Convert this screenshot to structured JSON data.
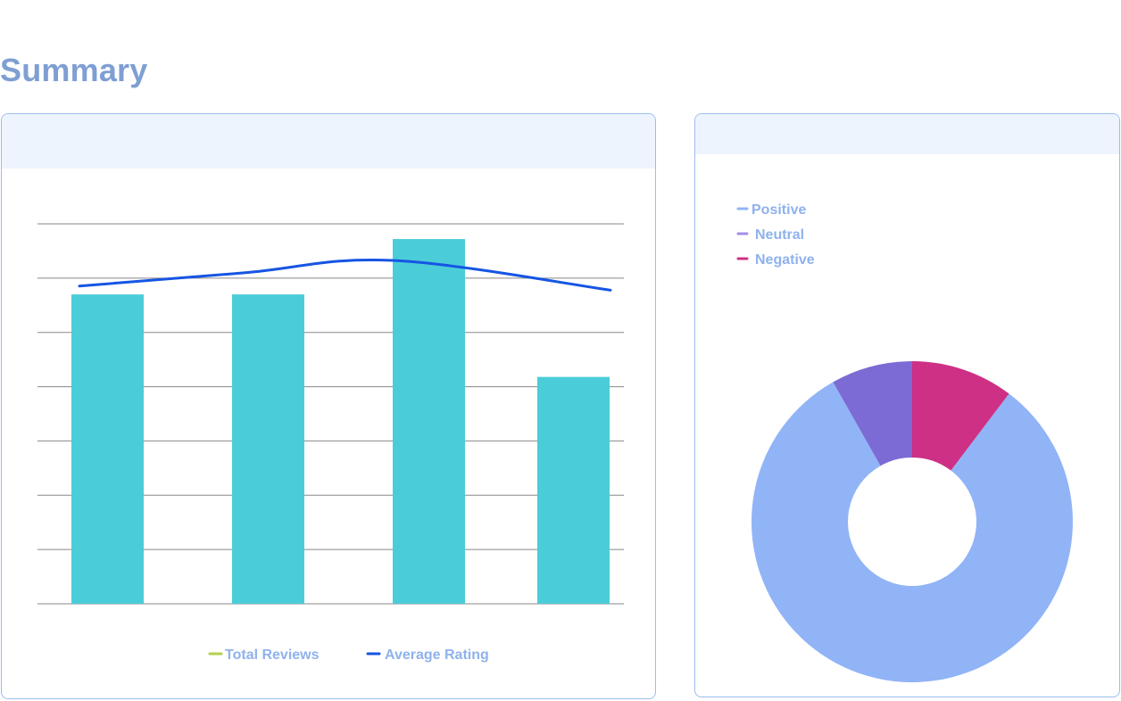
{
  "page": {
    "title": "Summary"
  },
  "colors": {
    "title": "#7f9fd3",
    "card_border": "#9bbcef",
    "card_header": "#eef4fd",
    "bars": "#4bcdd9",
    "line": "#1655e3",
    "legend_total_reviews": "#b5d04e",
    "grid": "#888888",
    "positive": "#91b4f7",
    "neutral": "#7c6bd4",
    "negative": "#cd3085",
    "legend_text": "#8fb2ec"
  },
  "chart_data": [
    {
      "type": "bar",
      "categories": [
        "",
        "",
        "",
        ""
      ],
      "ylim": [
        0,
        7
      ],
      "y2lim": [
        0,
        5.5
      ],
      "grid": true,
      "legend_position": "bottom",
      "series": [
        {
          "name": "Total Reviews",
          "kind": "bar",
          "axis": "left",
          "values": [
            5.7,
            5.7,
            6.72,
            4.18
          ]
        },
        {
          "name": "Average Rating",
          "kind": "line",
          "axis": "right",
          "values": [
            4.6,
            4.79,
            4.97,
            4.54
          ]
        }
      ]
    },
    {
      "type": "pie",
      "donut": true,
      "legend_position": "top-left",
      "labels": [
        "Positive",
        "Neutral",
        "Negative"
      ],
      "values": [
        81.5,
        8.2,
        10.3
      ]
    }
  ]
}
